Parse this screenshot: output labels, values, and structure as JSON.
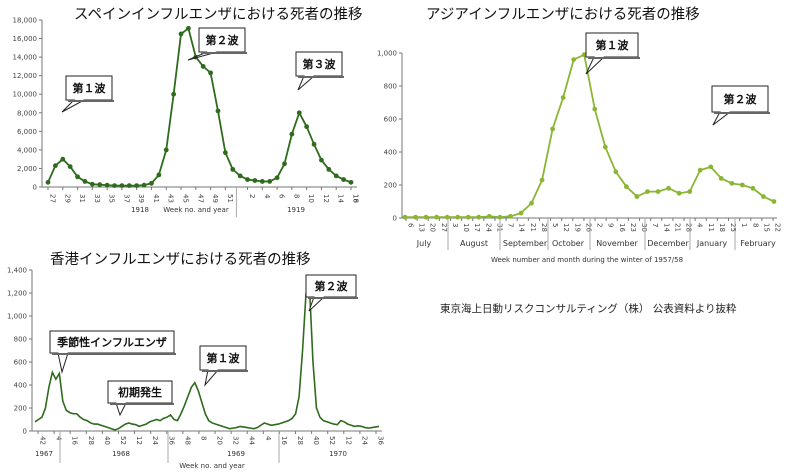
{
  "source_note": "東京海上日動リスクコンサルティング（株） 公表資料より抜粋",
  "chart_data": [
    {
      "type": "line",
      "title": "スペインインフルエンザにおける死者の推移",
      "xlabel": "Week no. and year",
      "ylim": [
        0,
        18000
      ],
      "yticks": [
        "0",
        "2,000",
        "4,000",
        "6,000",
        "8,000",
        "10,000",
        "12,000",
        "14,000",
        "16,000",
        "18,000"
      ],
      "xtick_labels": [
        "27",
        "29",
        "31",
        "33",
        "35",
        "37",
        "39",
        "41",
        "43",
        "45",
        "47",
        "49",
        "51",
        "2",
        "4",
        "6",
        "8",
        "10",
        "12",
        "14",
        "16",
        "18"
      ],
      "year_labels": [
        "1918",
        "1919"
      ],
      "series": [
        {
          "color": "#2e6b1c",
          "x": [
            27,
            28,
            29,
            30,
            31,
            32,
            33,
            34,
            35,
            36,
            37,
            38,
            39,
            40,
            41,
            42,
            43,
            44,
            45,
            46,
            47,
            48,
            49,
            50,
            51,
            52,
            53,
            54,
            55,
            56,
            57,
            58,
            59,
            60,
            61,
            62,
            63,
            64,
            65,
            66,
            67,
            68
          ],
          "values": [
            500,
            2300,
            3000,
            2200,
            1100,
            600,
            300,
            250,
            200,
            150,
            150,
            150,
            150,
            200,
            400,
            1300,
            4000,
            10000,
            16500,
            17100,
            14000,
            13000,
            12300,
            8200,
            3700,
            1900,
            1200,
            800,
            700,
            600,
            600,
            1000,
            2500,
            5700,
            8000,
            6500,
            4600,
            2900,
            1900,
            1200,
            800,
            500
          ]
        }
      ],
      "callouts": [
        "第１波",
        "第２波",
        "第３波"
      ]
    },
    {
      "type": "line",
      "title": "アジアインフルエンザにおける死者の推移",
      "xlabel": "Week number and month during the winter of 1957/58",
      "ylim": [
        0,
        1000
      ],
      "yticks": [
        "0",
        "200",
        "400",
        "600",
        "800",
        "1,000"
      ],
      "xtick_labels": [
        "6",
        "13",
        "20",
        "27",
        "3",
        "10",
        "17",
        "24",
        "31",
        "7",
        "14",
        "21",
        "28",
        "5",
        "12",
        "19",
        "26",
        "2",
        "9",
        "16",
        "23",
        "30",
        "7",
        "14",
        "21",
        "28",
        "4",
        "11",
        "18",
        "25",
        "1",
        "8",
        "15",
        "22"
      ],
      "months": [
        "July",
        "August",
        "September",
        "October",
        "November",
        "December",
        "January",
        "February"
      ],
      "series": [
        {
          "color": "#8bb634",
          "values": [
            5,
            5,
            5,
            5,
            5,
            5,
            5,
            5,
            10,
            5,
            10,
            30,
            90,
            230,
            540,
            730,
            960,
            990,
            660,
            430,
            280,
            190,
            130,
            160,
            160,
            180,
            150,
            160,
            290,
            310,
            240,
            210,
            200,
            180,
            130,
            100
          ]
        }
      ],
      "callouts": [
        "第１波",
        "第２波"
      ]
    },
    {
      "type": "line",
      "title": "香港インフルエンザにおける死者の推移",
      "xlabel": "Week no. and year",
      "ylim": [
        0,
        1400
      ],
      "yticks": [
        "0",
        "200",
        "400",
        "600",
        "800",
        "1,000",
        "1,200",
        "1,400"
      ],
      "xtick_labels": [
        "42",
        "4",
        "16",
        "28",
        "40",
        "52",
        "12",
        "24",
        "36",
        "48",
        "8",
        "20",
        "32",
        "44",
        "4",
        "16",
        "28",
        "40",
        "52",
        "12",
        "24",
        "36"
      ],
      "year_labels": [
        "1967",
        "1968",
        "1969",
        "1970"
      ],
      "series": [
        {
          "color": "#2e6b1c",
          "values": [
            80,
            100,
            120,
            200,
            380,
            510,
            450,
            500,
            260,
            180,
            160,
            150,
            150,
            120,
            100,
            90,
            70,
            60,
            60,
            50,
            40,
            30,
            20,
            10,
            20,
            40,
            60,
            70,
            60,
            55,
            40,
            50,
            60,
            80,
            90,
            100,
            90,
            110,
            120,
            140,
            100,
            90,
            150,
            220,
            300,
            380,
            420,
            350,
            250,
            150,
            90,
            70,
            60,
            50,
            40,
            30,
            20,
            25,
            30,
            40,
            35,
            30,
            25,
            20,
            30,
            50,
            70,
            60,
            50,
            55,
            60,
            70,
            80,
            90,
            110,
            150,
            300,
            700,
            1200,
            1250,
            600,
            200,
            120,
            90,
            80,
            70,
            60,
            55,
            90,
            80,
            60,
            50,
            40,
            45,
            40,
            30,
            25,
            30,
            35,
            40
          ]
        }
      ],
      "callouts": [
        "季節性インフルエンザ",
        "初期発生",
        "第１波",
        "第２波"
      ]
    }
  ]
}
